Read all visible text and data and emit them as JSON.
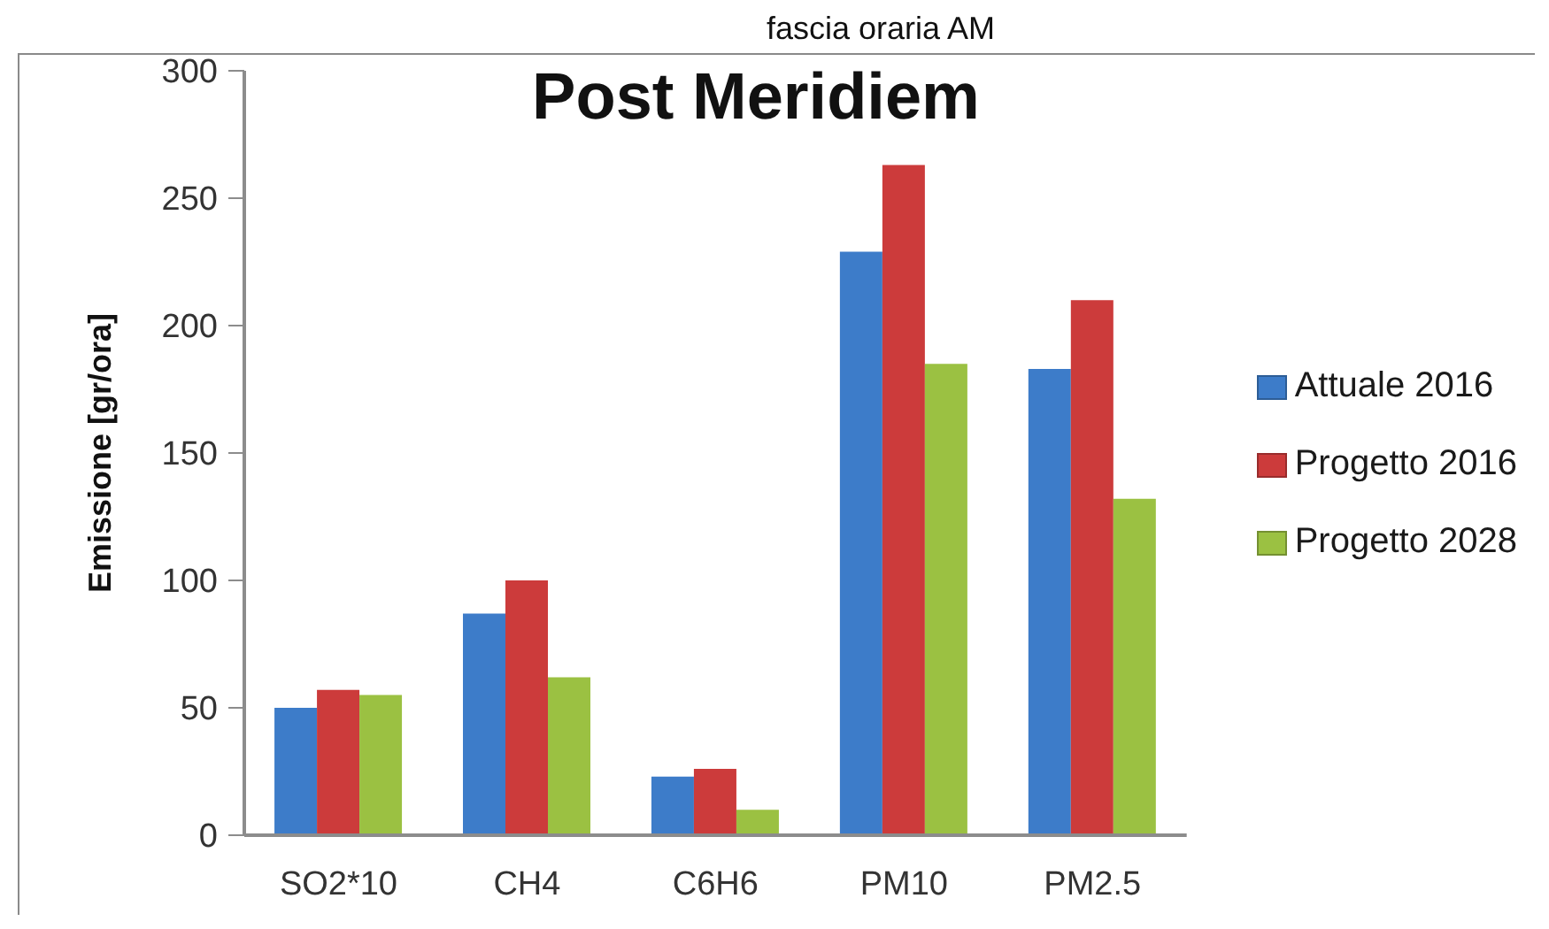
{
  "chart_data": {
    "type": "bar",
    "title": "Post Meridiem",
    "ylabel": "Emissione [gr/ora]",
    "annotations": [
      "fascia oraria AM"
    ],
    "categories": [
      "SO2*10",
      "CH4",
      "C6H6",
      "PM10",
      "PM2.5"
    ],
    "series": [
      {
        "name": "Attuale 2016",
        "color": "#3d7cc9",
        "values": [
          50,
          87,
          23,
          229,
          183
        ]
      },
      {
        "name": "Progetto 2016",
        "color": "#cc3b3b",
        "values": [
          57,
          100,
          26,
          263,
          210
        ]
      },
      {
        "name": "Progetto 2028",
        "color": "#9bc142",
        "values": [
          55,
          62,
          10,
          185,
          132
        ]
      }
    ],
    "ylim": [
      0,
      300
    ],
    "yticks": [
      0,
      50,
      100,
      150,
      200,
      250,
      300
    ],
    "grid": false,
    "legend": "right"
  }
}
